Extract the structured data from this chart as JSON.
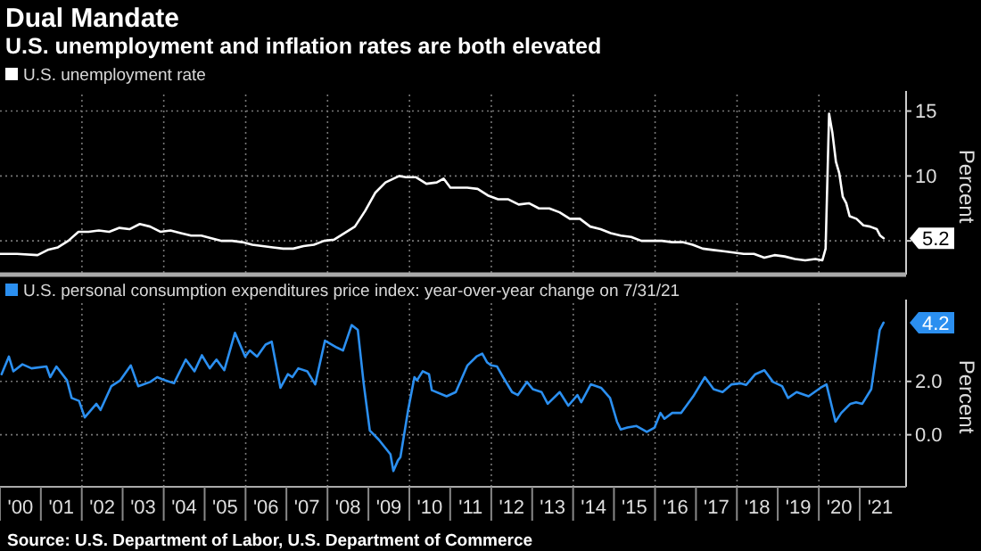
{
  "chart_data": [
    {
      "type": "line",
      "title": "Dual Mandate",
      "subtitle": "U.S. unemployment and inflation rates are both elevated",
      "ylabel": "Percent",
      "legend": "top left",
      "grid": true,
      "tick_labels": "y",
      "xlim": [
        "2000-01",
        "2022-02"
      ],
      "ylim": [
        2.4,
        16
      ],
      "yticks": [
        5,
        10,
        15
      ],
      "xticks": [
        {
          "value": "2002-01",
          "label": null
        },
        {
          "value": "2004-01",
          "label": null
        },
        {
          "value": "2006-01",
          "label": null
        },
        {
          "value": "2008-01",
          "label": null
        },
        {
          "value": "2010-01",
          "label": null
        },
        {
          "value": "2012-01",
          "label": null
        },
        {
          "value": "2014-01",
          "label": null
        },
        {
          "value": "2016-01",
          "label": null
        },
        {
          "value": "2018-01",
          "label": null
        },
        {
          "value": "2020-01",
          "label": null
        }
      ],
      "annotations": [
        {
          "text": "5.2",
          "x": "2021-08",
          "y": 5.2
        }
      ],
      "series": [
        {
          "name": "U.S. unemployment rate",
          "color": "#ffffff",
          "x": [
            "2000-01",
            "2000-06",
            "2000-12",
            "2001-03",
            "2001-06",
            "2001-09",
            "2001-12",
            "2002-03",
            "2002-06",
            "2002-09",
            "2002-12",
            "2003-03",
            "2003-06",
            "2003-09",
            "2003-12",
            "2004-03",
            "2004-06",
            "2004-09",
            "2004-12",
            "2005-03",
            "2005-06",
            "2005-09",
            "2005-12",
            "2006-03",
            "2006-06",
            "2006-09",
            "2006-12",
            "2007-03",
            "2007-06",
            "2007-09",
            "2007-12",
            "2008-03",
            "2008-06",
            "2008-09",
            "2008-12",
            "2009-03",
            "2009-06",
            "2009-10",
            "2009-12",
            "2010-03",
            "2010-06",
            "2010-09",
            "2010-11",
            "2011-01",
            "2011-06",
            "2011-09",
            "2011-12",
            "2012-03",
            "2012-06",
            "2012-09",
            "2012-12",
            "2013-03",
            "2013-06",
            "2013-09",
            "2013-12",
            "2014-03",
            "2014-06",
            "2014-09",
            "2014-12",
            "2015-03",
            "2015-06",
            "2015-09",
            "2015-12",
            "2016-03",
            "2016-06",
            "2016-09",
            "2016-12",
            "2017-03",
            "2017-06",
            "2017-09",
            "2017-12",
            "2018-03",
            "2018-06",
            "2018-09",
            "2018-12",
            "2019-03",
            "2019-06",
            "2019-09",
            "2019-12",
            "2020-02",
            "2020-03",
            "2020-04",
            "2020-05",
            "2020-06",
            "2020-07",
            "2020-08",
            "2020-09",
            "2020-10",
            "2020-12",
            "2021-02",
            "2021-04",
            "2021-06",
            "2021-07",
            "2021-08"
          ],
          "values": [
            4.0,
            4.0,
            3.9,
            4.3,
            4.5,
            5.0,
            5.7,
            5.7,
            5.8,
            5.7,
            6.0,
            5.9,
            6.3,
            6.1,
            5.7,
            5.8,
            5.6,
            5.4,
            5.4,
            5.2,
            5.0,
            5.0,
            4.9,
            4.7,
            4.6,
            4.5,
            4.4,
            4.4,
            4.6,
            4.7,
            5.0,
            5.1,
            5.6,
            6.1,
            7.3,
            8.7,
            9.5,
            10.0,
            9.9,
            9.9,
            9.4,
            9.5,
            9.8,
            9.1,
            9.1,
            9.0,
            8.5,
            8.2,
            8.2,
            7.8,
            7.9,
            7.5,
            7.5,
            7.2,
            6.7,
            6.7,
            6.1,
            5.9,
            5.6,
            5.4,
            5.3,
            5.0,
            5.0,
            5.0,
            4.9,
            4.9,
            4.7,
            4.4,
            4.3,
            4.2,
            4.1,
            4.0,
            4.0,
            3.7,
            3.9,
            3.8,
            3.6,
            3.5,
            3.6,
            3.5,
            4.4,
            14.8,
            13.3,
            11.1,
            10.2,
            8.4,
            7.9,
            6.9,
            6.7,
            6.2,
            6.1,
            5.9,
            5.4,
            5.2
          ]
        }
      ]
    },
    {
      "type": "line",
      "ylabel": "Percent",
      "legend": "top left",
      "grid": true,
      "xlim": [
        "2000-01",
        "2022-02"
      ],
      "ylim": [
        -1.95,
        4.8
      ],
      "yticks": [
        {
          "value": 0,
          "label": "0.0"
        },
        {
          "value": 2,
          "label": "2.0"
        }
      ],
      "xticks": [
        {
          "value": "2000-07",
          "label": "'00"
        },
        {
          "value": "2001-07",
          "label": "'01"
        },
        {
          "value": "2002-07",
          "label": "'02"
        },
        {
          "value": "2003-07",
          "label": "'03"
        },
        {
          "value": "2004-07",
          "label": "'04"
        },
        {
          "value": "2005-07",
          "label": "'05"
        },
        {
          "value": "2006-07",
          "label": "'06"
        },
        {
          "value": "2007-07",
          "label": "'07"
        },
        {
          "value": "2008-07",
          "label": "'08"
        },
        {
          "value": "2009-07",
          "label": "'09"
        },
        {
          "value": "2010-07",
          "label": "'10"
        },
        {
          "value": "2011-07",
          "label": "'11"
        },
        {
          "value": "2012-07",
          "label": "'12"
        },
        {
          "value": "2013-07",
          "label": "'13"
        },
        {
          "value": "2014-07",
          "label": "'14"
        },
        {
          "value": "2015-07",
          "label": "'15"
        },
        {
          "value": "2016-07",
          "label": "'16"
        },
        {
          "value": "2017-07",
          "label": "'17"
        },
        {
          "value": "2018-07",
          "label": "'18"
        },
        {
          "value": "2019-07",
          "label": "'19"
        },
        {
          "value": "2020-07",
          "label": "'20"
        },
        {
          "value": "2021-07",
          "label": "'21"
        },
        {
          "value": "2002-01",
          "label": null
        },
        {
          "value": "2004-01",
          "label": null
        },
        {
          "value": "2006-01",
          "label": null
        },
        {
          "value": "2008-01",
          "label": null
        },
        {
          "value": "2010-01",
          "label": null
        },
        {
          "value": "2012-01",
          "label": null
        },
        {
          "value": "2014-01",
          "label": null
        },
        {
          "value": "2016-01",
          "label": null
        },
        {
          "value": "2018-01",
          "label": null
        },
        {
          "value": "2020-01",
          "label": null
        }
      ],
      "annotations": [
        {
          "text": "4.2",
          "x": "2021-07-31",
          "y": 4.2
        },
        "Source: U.S. Department of Labor, U.S. Department of Commerce"
      ],
      "series": [
        {
          "name": "U.S. personal consumption expenditures price index: year-over-year change on 7/31/21",
          "color": "#2b8ff0",
          "x": [
            "2000-01-15",
            "2000-03-20",
            "2000-04-29",
            "2000-07-19",
            "2000-10-08",
            "2001-02-18",
            "2001-03-24",
            "2001-05-18",
            "2001-08-21",
            "2001-10-01",
            "2001-12-06",
            "2002-01-26",
            "2002-05-10",
            "2002-06-16",
            "2002-09-20",
            "2002-12-09",
            "2003-03-13",
            "2003-05-18",
            "2003-09-02",
            "2003-11-03",
            "2004-01-12",
            "2004-04-01",
            "2004-07-15",
            "2004-10-01",
            "2004-12-06",
            "2005-02-14",
            "2005-04-15",
            "2005-06-24",
            "2005-09-27",
            "2005-12-27",
            "2006-02-07",
            "2006-04-12",
            "2006-06-27",
            "2006-08-21",
            "2006-11-07",
            "2007-01-12",
            "2007-02-21",
            "2007-04-15",
            "2007-07-04",
            "2007-09-13",
            "2007-12-09",
            "2008-03-24",
            "2008-05-18",
            "2008-08-03",
            "2008-09-27",
            "2008-11-18",
            "2009-01-12",
            "2009-04-01",
            "2009-07-15",
            "2009-08-10",
            "2009-09-20",
            "2009-10-12",
            "2009-12-20",
            "2010-02-14",
            "2010-03-09",
            "2010-04-29",
            "2010-06-24",
            "2010-07-19",
            "2010-11-28",
            "2011-02-18",
            "2011-06-02",
            "2011-08-21",
            "2011-10-12",
            "2011-11-25",
            "2012-01-01",
            "2012-02-21",
            "2012-04-15",
            "2012-07-04",
            "2012-08-25",
            "2012-11-14",
            "2013-01-05",
            "2013-03-24",
            "2013-05-18",
            "2013-09-02",
            "2013-11-18",
            "2014-02-07",
            "2014-03-13",
            "2014-06-06",
            "2014-09-06",
            "2014-11-25",
            "2015-01-26",
            "2015-02-28",
            "2015-04-29",
            "2015-07-19",
            "2015-10-19",
            "2015-12-27",
            "2016-02-18",
            "2016-03-24",
            "2016-06-02",
            "2016-08-21",
            "2016-12-06",
            "2017-03-20",
            "2017-06-06",
            "2017-08-25",
            "2017-11-14",
            "2018-02-03",
            "2018-03-24",
            "2018-06-13",
            "2018-09-02",
            "2018-11-18",
            "2019-02-07",
            "2019-04-01",
            "2019-06-16",
            "2019-10-01",
            "2020-01-15",
            "2020-03-09",
            "2020-05-28",
            "2020-07-19",
            "2020-10-08",
            "2020-11-28",
            "2021-01-22",
            "2021-04-12",
            "2021-06-27",
            "2021-07-31"
          ],
          "values": [
            2.27,
            2.93,
            2.38,
            2.64,
            2.49,
            2.56,
            2.16,
            2.56,
            2.04,
            1.38,
            1.27,
            0.65,
            1.16,
            0.93,
            1.82,
            2.04,
            2.6,
            1.82,
            1.98,
            2.16,
            2.04,
            1.93,
            2.82,
            2.38,
            2.98,
            2.49,
            2.82,
            2.42,
            3.82,
            2.93,
            3.16,
            2.93,
            3.38,
            3.49,
            1.76,
            2.27,
            2.16,
            2.49,
            2.38,
            1.89,
            3.53,
            3.27,
            3.16,
            4.11,
            3.93,
            1.93,
            0.16,
            -0.18,
            -0.73,
            -1.36,
            -0.96,
            -0.84,
            0.93,
            2.16,
            2.04,
            2.38,
            2.27,
            1.67,
            1.44,
            1.6,
            2.6,
            2.93,
            3.04,
            2.71,
            2.6,
            2.56,
            2.16,
            1.6,
            1.49,
            1.98,
            1.71,
            1.6,
            1.16,
            1.6,
            1.09,
            1.49,
            1.22,
            1.89,
            1.76,
            1.38,
            0.49,
            0.2,
            0.27,
            0.33,
            0.11,
            0.27,
            0.82,
            0.6,
            0.82,
            0.82,
            1.44,
            2.16,
            1.71,
            1.6,
            1.89,
            1.93,
            1.87,
            2.27,
            2.42,
            1.98,
            1.82,
            1.38,
            1.6,
            1.44,
            1.76,
            1.89,
            0.49,
            0.82,
            1.16,
            1.22,
            1.16,
            1.71,
            3.93,
            4.2
          ]
        }
      ]
    }
  ]
}
